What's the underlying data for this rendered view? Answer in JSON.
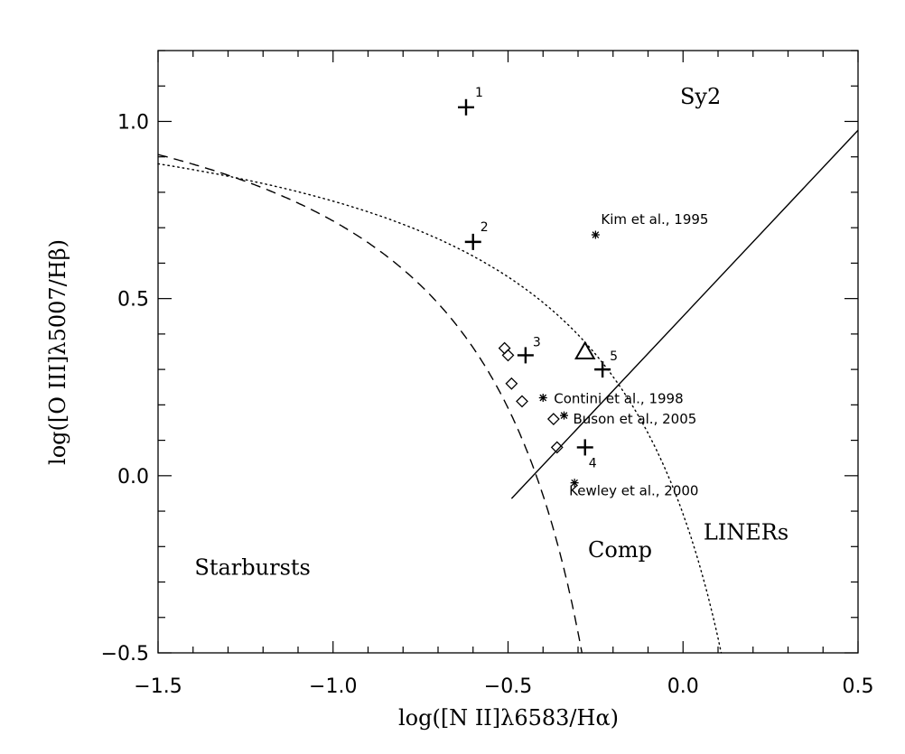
{
  "chart_data": {
    "type": "scatter",
    "xlabel": "log([N II]λ6583/Hα)",
    "ylabel": "log([O III]λ5007/Hβ)",
    "xlim": [
      -1.5,
      0.5
    ],
    "ylim": [
      -0.5,
      1.2
    ],
    "xticks": [
      -1.5,
      -1.0,
      -0.5,
      0.0,
      0.5
    ],
    "xtick_labels": [
      "−1.5",
      "−1.0",
      "−0.5",
      "0.0",
      "0.5"
    ],
    "yticks": [
      -0.5,
      0.0,
      0.5,
      1.0
    ],
    "ytick_labels": [
      "−0.5",
      "0.0",
      "0.5",
      "1.0"
    ],
    "grid": false,
    "region_labels": [
      {
        "text": "Sy2",
        "x": 0.05,
        "y": 1.05
      },
      {
        "text": "Starbursts",
        "x": -1.23,
        "y": -0.28
      },
      {
        "text": "Comp",
        "x": -0.18,
        "y": -0.23
      },
      {
        "text": "LINERs",
        "x": 0.18,
        "y": -0.18
      }
    ],
    "numbered_points": [
      {
        "label": "1",
        "x": -0.62,
        "y": 1.04
      },
      {
        "label": "2",
        "x": -0.6,
        "y": 0.66
      },
      {
        "label": "3",
        "x": -0.45,
        "y": 0.34
      },
      {
        "label": "4",
        "x": -0.28,
        "y": 0.08
      },
      {
        "label": "5",
        "x": -0.23,
        "y": 0.3
      }
    ],
    "reference_points": [
      {
        "label": "Kim et al., 1995",
        "x": -0.25,
        "y": 0.68
      },
      {
        "label": "Contini et al., 1998",
        "x": -0.4,
        "y": 0.22
      },
      {
        "label": "Buson et al., 2005",
        "x": -0.34,
        "y": 0.17
      },
      {
        "label": "Kewley et al., 2000",
        "x": -0.31,
        "y": -0.02
      }
    ],
    "diamond_points": [
      {
        "x": -0.51,
        "y": 0.36
      },
      {
        "x": -0.5,
        "y": 0.34
      },
      {
        "x": -0.49,
        "y": 0.26
      },
      {
        "x": -0.46,
        "y": 0.21
      },
      {
        "x": -0.37,
        "y": 0.16
      },
      {
        "x": -0.36,
        "y": 0.08
      }
    ],
    "triangle_points": [
      {
        "x": -0.28,
        "y": 0.35
      }
    ],
    "curves": [
      {
        "kind": "dashed",
        "relation": "y = 0.61/(x - 0.05) + 1.3",
        "x_range": [
          -1.5,
          -0.3
        ]
      },
      {
        "kind": "dotted",
        "relation": "y = 0.61/(x - 0.47) + 1.19",
        "x_range": [
          -1.5,
          0.1
        ]
      },
      {
        "kind": "solid",
        "relation": "y = 1.05x + 0.45",
        "x_range": [
          -0.49,
          0.5
        ]
      }
    ]
  }
}
